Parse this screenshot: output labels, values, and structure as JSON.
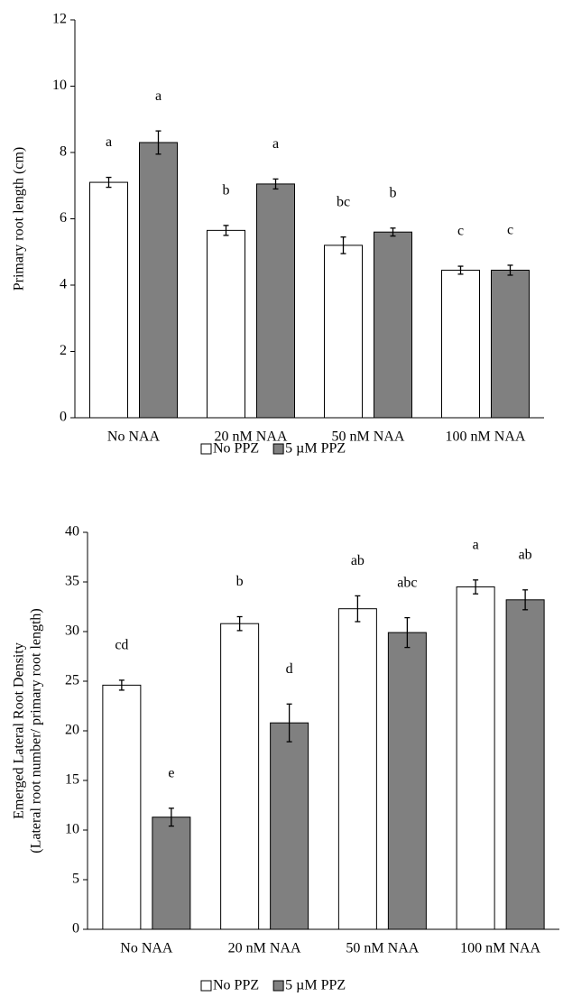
{
  "chart_data": [
    {
      "type": "bar",
      "ylabel": [
        "Primary root length (cm)"
      ],
      "categories": [
        "No NAA",
        "20 nM NAA",
        "50 nM NAA",
        "100 nM NAA"
      ],
      "series": [
        {
          "name": "No PPZ",
          "color": "#ffffff",
          "values": [
            7.1,
            5.65,
            5.2,
            4.45
          ],
          "errors": [
            0.15,
            0.15,
            0.25,
            0.12
          ],
          "annotations": [
            "a",
            "b",
            "bc",
            "c"
          ]
        },
        {
          "name": "5 µM PPZ",
          "color": "#808080",
          "values": [
            8.3,
            7.05,
            5.6,
            4.45
          ],
          "errors": [
            0.35,
            0.15,
            0.12,
            0.15
          ],
          "annotations": [
            "a",
            "a",
            "b",
            "c"
          ]
        }
      ],
      "ylim": [
        0,
        12
      ],
      "yticks": [
        0,
        2,
        4,
        6,
        8,
        10,
        12
      ],
      "grid": false
    },
    {
      "type": "bar",
      "ylabel": [
        "Emerged Lateral Root Density",
        "(Lateral root number/ primary root length)"
      ],
      "categories": [
        "No NAA",
        "20 nM NAA",
        "50 nM NAA",
        "100 nM NAA"
      ],
      "series": [
        {
          "name": "No PPZ",
          "color": "#ffffff",
          "values": [
            24.6,
            30.8,
            32.3,
            34.5
          ],
          "errors": [
            0.5,
            0.7,
            1.3,
            0.7
          ],
          "annotations": [
            "cd",
            "b",
            "ab",
            "a"
          ]
        },
        {
          "name": "5 µM PPZ",
          "color": "#808080",
          "values": [
            11.3,
            20.8,
            29.9,
            33.2
          ],
          "errors": [
            0.9,
            1.9,
            1.5,
            1.0
          ],
          "annotations": [
            "e",
            "d",
            "abc",
            "ab"
          ]
        }
      ],
      "ylim": [
        0,
        40
      ],
      "yticks": [
        0,
        5,
        10,
        15,
        20,
        25,
        30,
        35,
        40
      ],
      "grid": false
    }
  ]
}
